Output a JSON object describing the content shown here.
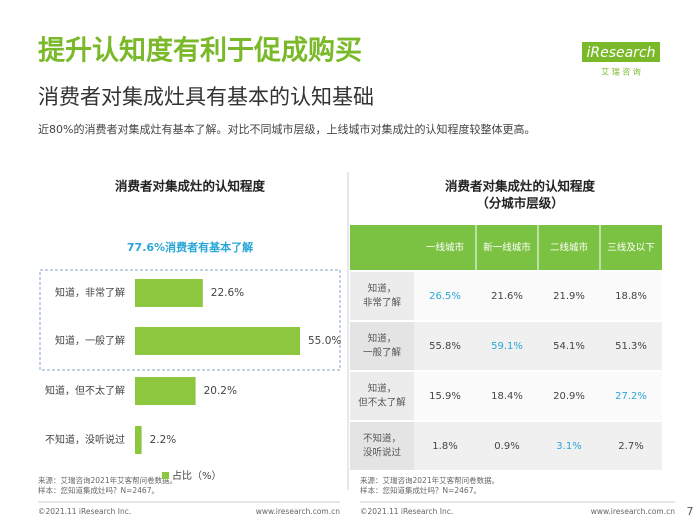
{
  "header": {
    "title": "提升认知度有利于促成购买",
    "subtitle": "消费者对集成灶具有基本的认知基础",
    "description": "近80%的消费者对集成灶有基本了解。对比不同城市层级，上线城市对集成灶的认知程度较整体更高。",
    "logo": "iResearch",
    "logo_cn": "艾 瑞 咨 询"
  },
  "chart_data": {
    "type": "bar",
    "orientation": "horizontal",
    "title": "消费者对集成灶的认知程度",
    "annotation": "77.6%消费者有基本了解",
    "categories": [
      "知道，非常了解",
      "知道，一般了解",
      "知道，但不太了解",
      "不知道，没听说过"
    ],
    "series": [
      {
        "name": "占比（%）",
        "color": "#8dc63f",
        "values": [
          22.6,
          55.0,
          20.2,
          2.2
        ],
        "value_labels": [
          "22.6%",
          "55.0%",
          "20.2%",
          "2.2%"
        ]
      }
    ],
    "source": [
      "来源：艾瑞咨询2021年艾客帮问卷数据。",
      "样本：您知道集成灶吗？N=2467。"
    ]
  },
  "table": {
    "title": [
      "消费者对集成灶的认知程度",
      "（分城市层级）"
    ],
    "header_color": "#7cc242",
    "highlight_color": "#2aa7d8",
    "columns": [
      "一线城市",
      "新一线城市",
      "二线城市",
      "三线及以下"
    ],
    "rows": [
      {
        "label": [
          "知道，",
          "非常了解"
        ],
        "values": [
          "26.5%",
          "21.6%",
          "21.9%",
          "18.8%"
        ],
        "highlight": 0
      },
      {
        "label": [
          "知道，",
          "一般了解"
        ],
        "values": [
          "55.8%",
          "59.1%",
          "54.1%",
          "51.3%"
        ],
        "highlight": 1
      },
      {
        "label": [
          "知道，",
          "但不太了解"
        ],
        "values": [
          "15.9%",
          "18.4%",
          "20.9%",
          "27.2%"
        ],
        "highlight": 3
      },
      {
        "label": [
          "不知道，",
          "没听说过"
        ],
        "values": [
          "1.8%",
          "0.9%",
          "3.1%",
          "2.7%"
        ],
        "highlight": 2
      }
    ],
    "source": [
      "来源：艾瑞咨询2021年艾客帮问卷数据。",
      "样本：您知道集成灶吗？N=2467。"
    ]
  },
  "footer": {
    "copyright": "©2021.11 iResearch Inc.",
    "url": "www.iresearch.com.cn",
    "page": "7"
  }
}
